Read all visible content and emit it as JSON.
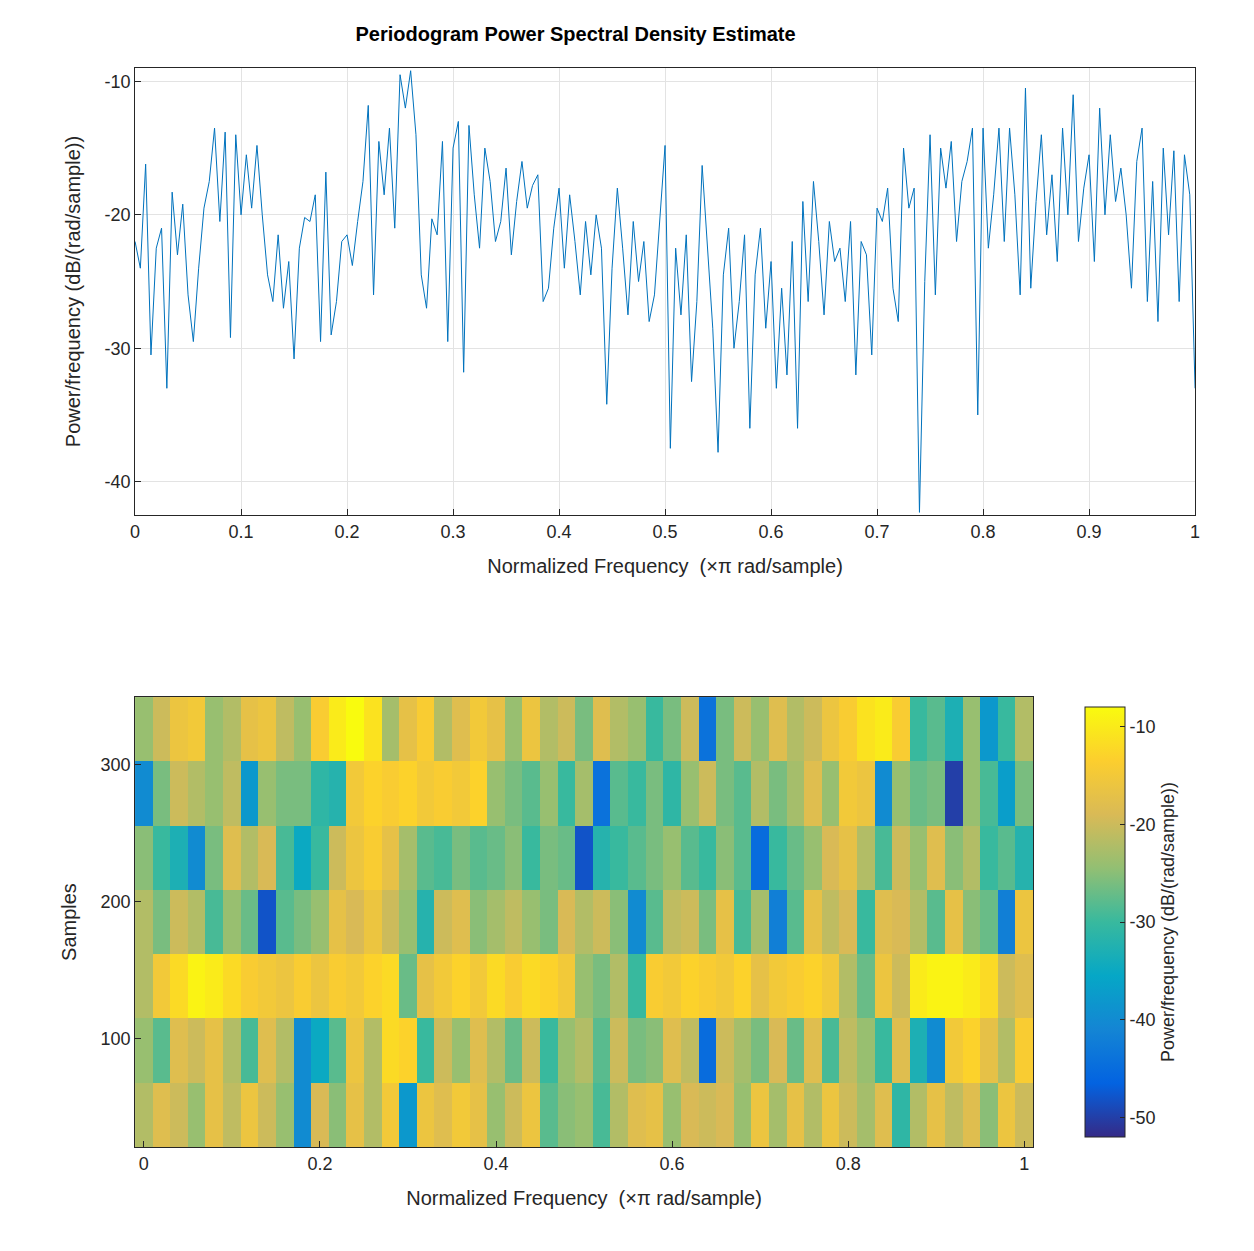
{
  "chart_data": [
    {
      "type": "line",
      "title": "Periodogram Power Spectral Density Estimate",
      "x_label": "Normalized Frequency  (×π rad/sample)",
      "y_label": "Power/frequency (dB/(rad/sample))",
      "color": "#0072bd",
      "grid": true,
      "xlim": [
        0,
        1
      ],
      "ylim": [
        -42.5,
        -9
      ],
      "xticks": [
        0,
        0.1,
        0.2,
        0.3,
        0.4,
        0.5,
        0.6,
        0.7,
        0.8,
        0.9,
        1
      ],
      "yticks": [
        -40,
        -30,
        -20,
        -10
      ],
      "x": [
        0,
        0.005,
        0.01,
        0.015,
        0.02,
        0.025,
        0.03,
        0.035,
        0.04,
        0.045,
        0.05,
        0.055,
        0.06,
        0.065,
        0.07,
        0.075,
        0.08,
        0.085,
        0.09,
        0.095,
        0.1,
        0.105,
        0.11,
        0.115,
        0.12,
        0.125,
        0.13,
        0.135,
        0.14,
        0.145,
        0.15,
        0.155,
        0.16,
        0.165,
        0.17,
        0.175,
        0.18,
        0.185,
        0.19,
        0.195,
        0.2,
        0.205,
        0.21,
        0.215,
        0.22,
        0.225,
        0.23,
        0.235,
        0.24,
        0.245,
        0.25,
        0.255,
        0.26,
        0.265,
        0.27,
        0.275,
        0.28,
        0.285,
        0.29,
        0.295,
        0.3,
        0.305,
        0.31,
        0.315,
        0.32,
        0.325,
        0.33,
        0.335,
        0.34,
        0.345,
        0.35,
        0.355,
        0.36,
        0.365,
        0.37,
        0.375,
        0.38,
        0.385,
        0.39,
        0.395,
        0.4,
        0.405,
        0.41,
        0.415,
        0.42,
        0.425,
        0.43,
        0.435,
        0.44,
        0.445,
        0.45,
        0.455,
        0.46,
        0.465,
        0.47,
        0.475,
        0.48,
        0.485,
        0.49,
        0.495,
        0.5,
        0.505,
        0.51,
        0.515,
        0.52,
        0.525,
        0.53,
        0.535,
        0.54,
        0.545,
        0.55,
        0.555,
        0.56,
        0.565,
        0.57,
        0.575,
        0.58,
        0.585,
        0.59,
        0.595,
        0.6,
        0.605,
        0.61,
        0.615,
        0.62,
        0.625,
        0.63,
        0.635,
        0.64,
        0.645,
        0.65,
        0.655,
        0.66,
        0.665,
        0.67,
        0.675,
        0.68,
        0.685,
        0.69,
        0.695,
        0.7,
        0.705,
        0.71,
        0.715,
        0.72,
        0.725,
        0.73,
        0.735,
        0.74,
        0.745,
        0.75,
        0.755,
        0.76,
        0.765,
        0.77,
        0.775,
        0.78,
        0.785,
        0.79,
        0.795,
        0.8,
        0.805,
        0.81,
        0.815,
        0.82,
        0.825,
        0.83,
        0.835,
        0.84,
        0.845,
        0.85,
        0.855,
        0.86,
        0.865,
        0.87,
        0.875,
        0.88,
        0.885,
        0.89,
        0.895,
        0.9,
        0.905,
        0.91,
        0.915,
        0.92,
        0.925,
        0.93,
        0.935,
        0.94,
        0.945,
        0.95,
        0.955,
        0.96,
        0.965,
        0.97,
        0.975,
        0.98,
        0.985,
        0.99,
        0.995,
        1
      ],
      "values": [
        -22,
        -24,
        -16.2,
        -30.5,
        -22.5,
        -21,
        -33,
        -18.3,
        -23,
        -19.2,
        -26,
        -29.5,
        -24,
        -19.5,
        -17.5,
        -13.5,
        -20.5,
        -13.8,
        -29.2,
        -14,
        -20,
        -15.5,
        -19.5,
        -14.8,
        -20,
        -24.5,
        -26.5,
        -21.5,
        -27,
        -23.5,
        -30.8,
        -22.5,
        -20.2,
        -20.5,
        -18.5,
        -29.5,
        -16.8,
        -29,
        -26.5,
        -22,
        -21.5,
        -23.8,
        -20.5,
        -17.5,
        -11.8,
        -26,
        -14.5,
        -18.5,
        -13.5,
        -21,
        -9.5,
        -12,
        -9.2,
        -14,
        -24.5,
        -27,
        -20.3,
        -21.5,
        -14.5,
        -29.5,
        -15,
        -13,
        -31.8,
        -13.3,
        -18.5,
        -22.5,
        -15,
        -17.5,
        -22,
        -20.5,
        -16.5,
        -23,
        -19,
        -16,
        -19.5,
        -17.8,
        -17,
        -26.5,
        -25.5,
        -21,
        -18,
        -24,
        -18.5,
        -22,
        -26,
        -20.5,
        -24.5,
        -20,
        -22.5,
        -34.2,
        -24,
        -18,
        -22.5,
        -27.5,
        -20.5,
        -25,
        -22,
        -28,
        -26,
        -20,
        -14.8,
        -37.5,
        -22.5,
        -27.5,
        -21.5,
        -32.5,
        -26.5,
        -16.3,
        -22,
        -28.5,
        -37.8,
        -24.5,
        -21,
        -30,
        -26.5,
        -21.5,
        -36,
        -24.5,
        -21,
        -28.5,
        -23.5,
        -33,
        -25.5,
        -32,
        -22,
        -36,
        -19,
        -26.5,
        -17.5,
        -22,
        -27.5,
        -20.5,
        -23.5,
        -22.5,
        -26.5,
        -20.5,
        -32,
        -22,
        -23,
        -30.5,
        -19.5,
        -20.5,
        -18,
        -25.5,
        -28,
        -15,
        -19.5,
        -18,
        -42.3,
        -25,
        -14,
        -26,
        -15,
        -18,
        -14.5,
        -22,
        -17.5,
        -16,
        -13.5,
        -35,
        -13.5,
        -22.5,
        -18.5,
        -13.5,
        -22,
        -13.5,
        -18.5,
        -26,
        -10.5,
        -25.5,
        -19,
        -14,
        -21.5,
        -17,
        -23.5,
        -13.5,
        -20,
        -11,
        -22,
        -18,
        -15.5,
        -23.5,
        -12,
        -20,
        -14,
        -19,
        -16.5,
        -20,
        -25.5,
        -16,
        -13.5,
        -26.5,
        -17.5,
        -28,
        -15,
        -21.5,
        -15.2,
        -26.5,
        -15.5,
        -18.5,
        -33
      ]
    },
    {
      "type": "heatmap",
      "x_label": "Normalized Frequency  (×π rad/sample)",
      "y_label": "Samples",
      "colorbar_title": "Power/frequency (dB/(rad/sample))",
      "grid": false,
      "xlim": [
        -0.01,
        1.01
      ],
      "ylim": [
        20.5,
        349.5
      ],
      "xticks": [
        0,
        0.2,
        0.4,
        0.6,
        0.8,
        1
      ],
      "yticks": [
        100,
        200,
        300
      ],
      "zlim": [
        -52,
        -8
      ],
      "zticks": [
        -50,
        -40,
        -30,
        -20,
        -10
      ],
      "x": [
        0,
        0.02,
        0.04,
        0.06,
        0.08,
        0.1,
        0.12,
        0.14,
        0.16,
        0.18,
        0.2,
        0.22,
        0.24,
        0.26,
        0.28,
        0.3,
        0.32,
        0.34,
        0.36,
        0.38,
        0.4,
        0.42,
        0.44,
        0.46,
        0.48,
        0.5,
        0.52,
        0.54,
        0.56,
        0.58,
        0.6,
        0.62,
        0.64,
        0.66,
        0.68,
        0.7,
        0.72,
        0.74,
        0.76,
        0.78,
        0.8,
        0.82,
        0.84,
        0.86,
        0.88,
        0.9,
        0.92,
        0.94,
        0.96,
        0.98,
        1
      ],
      "y": [
        44,
        91,
        138,
        185,
        232,
        279,
        326
      ],
      "z": [
        [
          -22,
          -18,
          -20,
          -24,
          -17,
          -21,
          -16,
          -20,
          -24,
          -40,
          -19,
          -25,
          -17,
          -22,
          -15,
          -38,
          -16,
          -18,
          -15,
          -17,
          -24,
          -20,
          -16,
          -28,
          -25,
          -24,
          -29,
          -22,
          -18,
          -17,
          -24,
          -19,
          -20,
          -19,
          -24,
          -16,
          -23,
          -17,
          -22,
          -16,
          -20,
          -23,
          -18,
          -31,
          -22,
          -17,
          -21,
          -18,
          -25,
          -16,
          -20
        ],
        [
          -24,
          -28,
          -18,
          -20,
          -17,
          -22,
          -29,
          -18,
          -22,
          -40,
          -35,
          -28,
          -16,
          -22,
          -12,
          -13,
          -30,
          -20,
          -24,
          -18,
          -22,
          -27,
          -20,
          -30,
          -24,
          -22,
          -28,
          -20,
          -26,
          -25,
          -18,
          -21,
          -45,
          -20,
          -23,
          -26,
          -19,
          -27,
          -18,
          -29,
          -21,
          -24,
          -30,
          -18,
          -33,
          -40,
          -15,
          -13,
          -17,
          -22,
          -14
        ],
        [
          -22,
          -15,
          -12,
          -9,
          -10,
          -12,
          -14,
          -15,
          -16,
          -14,
          -16,
          -14,
          -15,
          -13,
          -12,
          -27,
          -17,
          -15,
          -13,
          -15,
          -12,
          -14,
          -12,
          -13,
          -15,
          -24,
          -26,
          -22,
          -30,
          -14,
          -15,
          -13,
          -14,
          -15,
          -13,
          -17,
          -15,
          -14,
          -13,
          -15,
          -22,
          -27,
          -16,
          -20,
          -10,
          -9,
          -9,
          -10,
          -12,
          -20,
          -18
        ],
        [
          -22,
          -26,
          -20,
          -22,
          -29,
          -24,
          -27,
          -48,
          -28,
          -26,
          -24,
          -17,
          -19,
          -16,
          -20,
          -24,
          -32,
          -20,
          -18,
          -25,
          -23,
          -21,
          -24,
          -26,
          -19,
          -22,
          -20,
          -25,
          -40,
          -28,
          -21,
          -20,
          -26,
          -17,
          -29,
          -23,
          -42,
          -28,
          -17,
          -21,
          -19,
          -30,
          -18,
          -19,
          -22,
          -28,
          -17,
          -25,
          -27,
          -42,
          -16
        ],
        [
          -25,
          -30,
          -33,
          -40,
          -26,
          -18,
          -22,
          -19,
          -29,
          -35,
          -30,
          -20,
          -16,
          -14,
          -17,
          -23,
          -28,
          -29,
          -26,
          -28,
          -27,
          -25,
          -30,
          -26,
          -27,
          -48,
          -32,
          -30,
          -28,
          -26,
          -24,
          -28,
          -30,
          -25,
          -28,
          -45,
          -30,
          -27,
          -24,
          -19,
          -17,
          -22,
          -29,
          -20,
          -24,
          -18,
          -25,
          -22,
          -30,
          -28,
          -32
        ],
        [
          -40,
          -26,
          -20,
          -22,
          -24,
          -21,
          -38,
          -24,
          -26,
          -26,
          -31,
          -32,
          -15,
          -13,
          -14,
          -13,
          -15,
          -14,
          -15,
          -13,
          -24,
          -26,
          -28,
          -24,
          -30,
          -23,
          -44,
          -28,
          -30,
          -26,
          -31,
          -24,
          -20,
          -26,
          -28,
          -22,
          -26,
          -23,
          -18,
          -24,
          -15,
          -16,
          -40,
          -24,
          -27,
          -26,
          -50,
          -24,
          -29,
          -37,
          -26
        ],
        [
          -24,
          -20,
          -16,
          -15,
          -24,
          -22,
          -17,
          -16,
          -21,
          -24,
          -14,
          -10,
          -8,
          -11,
          -23,
          -17,
          -14,
          -22,
          -18,
          -15,
          -17,
          -24,
          -16,
          -22,
          -20,
          -26,
          -18,
          -22,
          -24,
          -30,
          -26,
          -20,
          -44,
          -26,
          -20,
          -24,
          -18,
          -22,
          -20,
          -16,
          -14,
          -11,
          -10,
          -14,
          -30,
          -28,
          -33,
          -24,
          -38,
          -30,
          -22
        ]
      ]
    }
  ]
}
